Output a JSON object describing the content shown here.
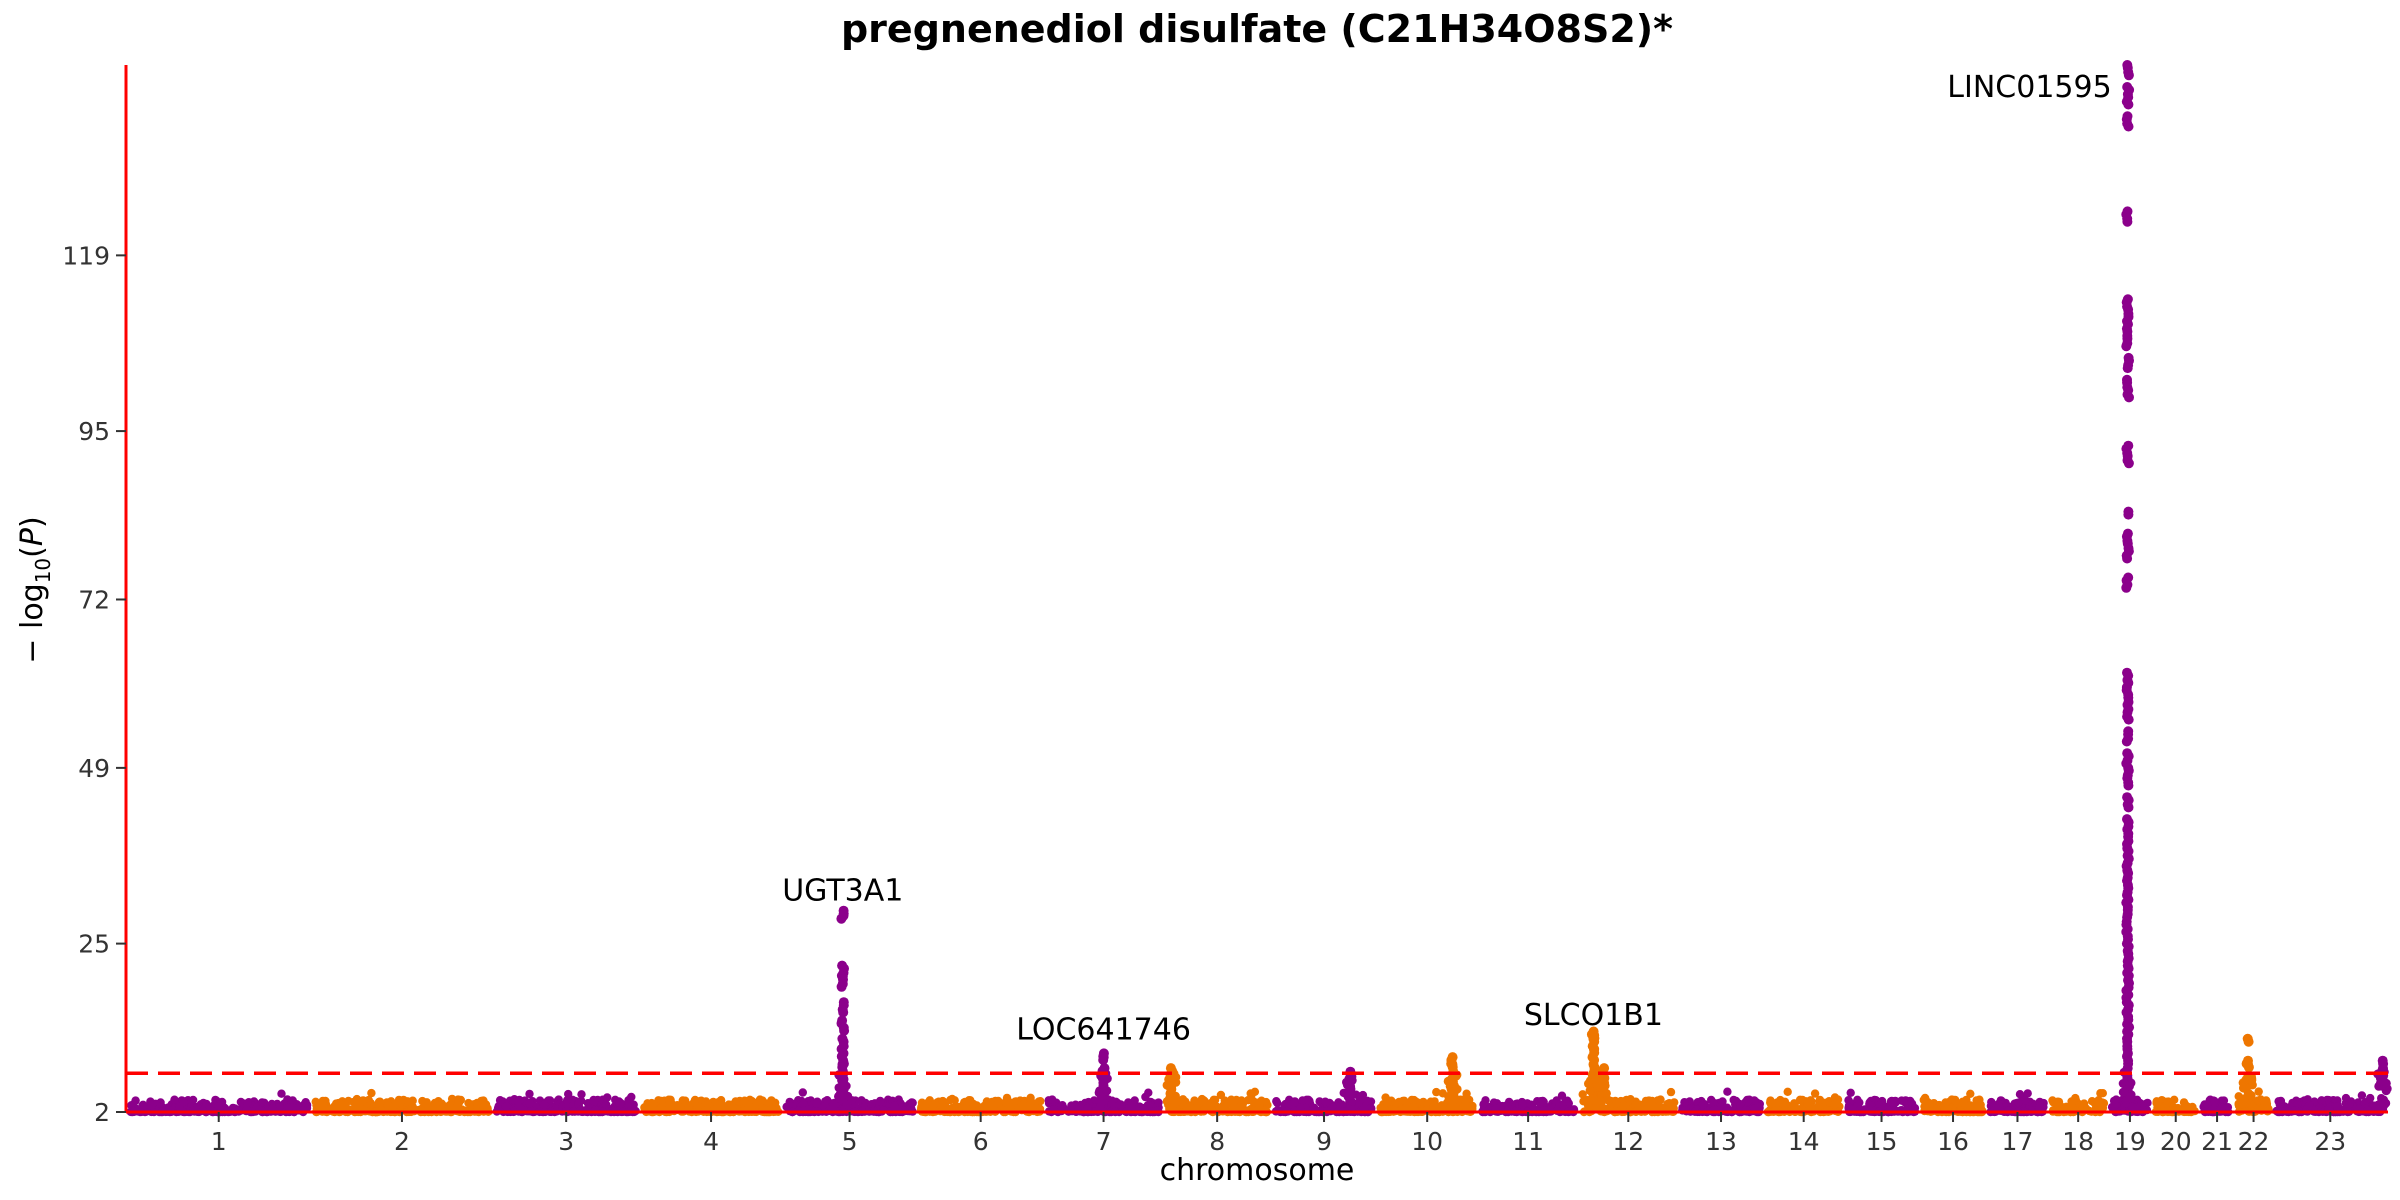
{
  "chart_data": {
    "type": "scatter",
    "title": "pregnenediol disulfate (C21H34O8S2)*",
    "xlabel": "chromosome",
    "ylabel": "-log10(P)",
    "ylim": [
      2,
      145
    ],
    "yticks": [
      2,
      25,
      49,
      72,
      95,
      119
    ],
    "yticks_labels": [
      "2",
      "25",
      "49",
      "72",
      "95",
      "119"
    ],
    "significance_threshold": 7.3,
    "colors": {
      "odd": "#8B008B",
      "even": "#EE7600",
      "threshold": "#FF0000",
      "axis": "#FF0000"
    },
    "chromosomes": [
      {
        "label": "1",
        "length": 249
      },
      {
        "label": "2",
        "length": 243
      },
      {
        "label": "3",
        "length": 198
      },
      {
        "label": "4",
        "length": 191
      },
      {
        "label": "5",
        "length": 181
      },
      {
        "label": "6",
        "length": 171
      },
      {
        "label": "7",
        "length": 159
      },
      {
        "label": "8",
        "length": 146
      },
      {
        "label": "9",
        "length": 141
      },
      {
        "label": "10",
        "length": 136
      },
      {
        "label": "11",
        "length": 135
      },
      {
        "label": "12",
        "length": 134
      },
      {
        "label": "13",
        "length": 115
      },
      {
        "label": "14",
        "length": 107
      },
      {
        "label": "15",
        "length": 102
      },
      {
        "label": "16",
        "length": 90
      },
      {
        "label": "17",
        "length": 83
      },
      {
        "label": "18",
        "length": 80
      },
      {
        "label": "19",
        "length": 59
      },
      {
        "label": "20",
        "length": 64
      },
      {
        "label": "21",
        "length": 47
      },
      {
        "label": "22",
        "length": 51
      },
      {
        "label": "23",
        "length": 155
      }
    ],
    "annotations": [
      {
        "chromosome": "5",
        "position": 0.45,
        "label": "UGT3A1",
        "pvalue": 29
      },
      {
        "chromosome": "7",
        "position": 0.5,
        "label": "LOC641746",
        "pvalue": 10
      },
      {
        "chromosome": "12",
        "position": 0.15,
        "label": "SLCO1B1",
        "pvalue": 12
      },
      {
        "chromosome": "19",
        "position": 0.45,
        "label": "LINC01595",
        "pvalue": 142
      }
    ],
    "peaks": [
      {
        "chromosome": "5",
        "position": 0.45,
        "max": 29.5,
        "values": [
          29.5,
          28.8,
          22,
          21,
          20.5,
          19.5,
          17,
          16,
          14.5,
          13.5,
          12,
          11,
          10,
          9,
          8.5,
          7.5,
          6.5,
          5.5,
          4.5
        ]
      },
      {
        "chromosome": "7",
        "position": 0.5,
        "max": 10,
        "values": [
          10,
          9.5,
          8,
          7,
          6,
          5,
          4.5
        ]
      },
      {
        "chromosome": "8",
        "position": 0.08,
        "max": 8,
        "values": [
          8,
          7.5,
          6.5,
          5.5,
          4.5
        ]
      },
      {
        "chromosome": "9",
        "position": 0.75,
        "max": 7.5,
        "values": [
          7.5,
          6.5,
          5.5,
          4.5
        ]
      },
      {
        "chromosome": "10",
        "position": 0.75,
        "max": 9.5,
        "values": [
          9.5,
          9,
          8.5,
          7.5,
          6.5,
          5.5,
          4.5
        ]
      },
      {
        "chromosome": "12",
        "position": 0.15,
        "max": 13,
        "values": [
          13,
          12.5,
          12,
          11,
          10.5,
          9.5,
          8.5,
          7.5,
          6.5,
          5.5,
          4.5
        ]
      },
      {
        "chromosome": "12",
        "position": 0.25,
        "max": 8,
        "values": [
          8,
          7,
          6,
          5
        ]
      },
      {
        "chromosome": "19",
        "position": 0.45,
        "max": 145,
        "values": [
          145,
          144,
          142,
          141,
          140,
          138,
          137,
          125,
          124,
          113,
          112,
          111,
          110,
          109,
          108,
          107,
          105,
          104,
          102,
          101,
          100,
          93,
          92,
          91,
          84,
          81,
          80,
          79,
          78,
          75,
          74,
          62,
          61,
          60,
          59,
          58,
          57,
          56,
          54,
          53,
          51,
          50,
          49,
          48,
          47,
          45,
          44,
          42,
          41,
          40,
          39,
          38,
          37,
          36,
          35,
          34,
          33,
          32,
          31,
          30,
          29,
          28,
          27,
          26,
          25,
          24,
          23,
          22,
          21,
          20,
          19,
          18,
          17,
          16,
          15,
          14,
          13,
          12,
          11,
          10,
          9,
          8,
          7,
          6,
          5,
          4.5
        ]
      },
      {
        "chromosome": "22",
        "position": 0.35,
        "max": 12,
        "values": [
          12,
          9,
          8.5,
          7,
          6
        ]
      },
      {
        "chromosome": "23",
        "position": 0.95,
        "max": 9,
        "values": [
          9,
          8,
          7,
          6
        ]
      }
    ]
  }
}
